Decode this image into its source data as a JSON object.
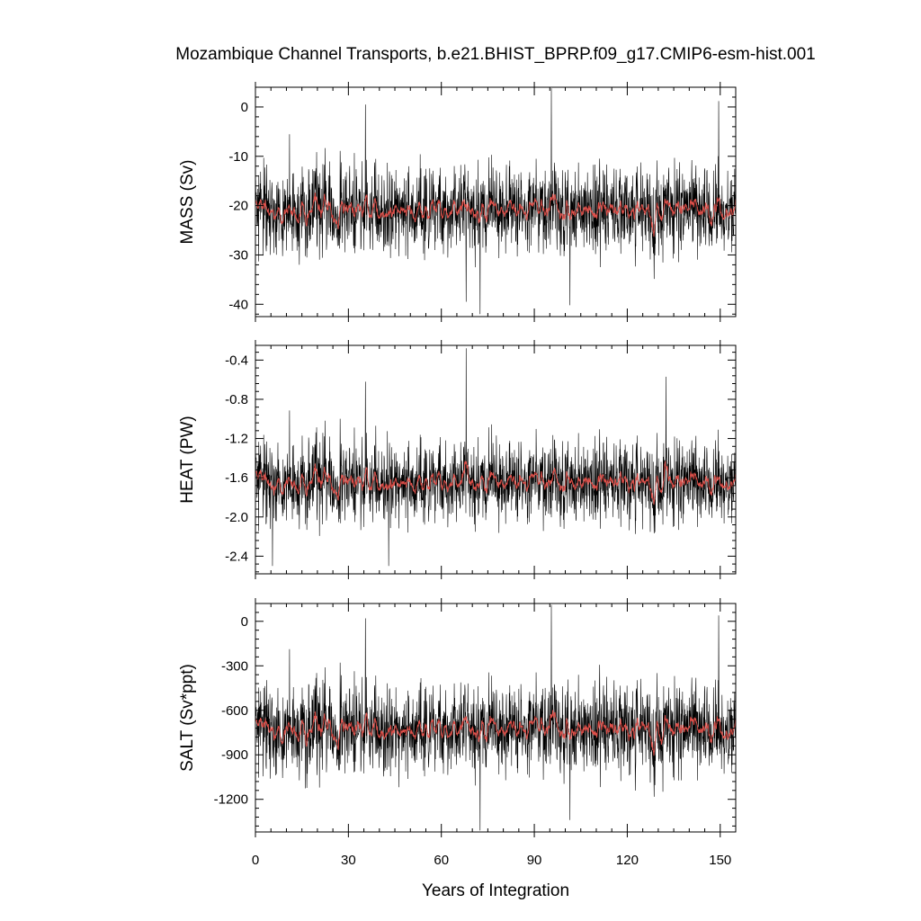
{
  "figure": {
    "title": "Mozambique Channel Transports, b.e21.BHIST_BPRP.f09_g17.CMIP6-esm-hist.001"
  },
  "colors": {
    "raw": "#000000",
    "smooth": "#e0504a",
    "axis": "#000000"
  },
  "chart_data": [
    {
      "type": "line",
      "key": "mass",
      "ylabel": "MASS (Sv)",
      "xlim": [
        0,
        155
      ],
      "ylim": [
        -42.5,
        4
      ],
      "yticks": [
        0,
        -10,
        -20,
        -30,
        -40
      ],
      "yticklabels": [
        "0",
        "-10",
        "-20",
        "-30",
        "-40"
      ],
      "mean": -21,
      "amplitude": 7,
      "smooth_amplitude": 2.2,
      "extremes": [
        {
          "x": 95.5,
          "y": 3.8
        },
        {
          "x": 72.5,
          "y": -42.0
        },
        {
          "x": 101.5,
          "y": -40.2
        },
        {
          "x": 149.5,
          "y": 1.2
        },
        {
          "x": 35.5,
          "y": 0.5
        },
        {
          "x": 68.0,
          "y": -39.5
        }
      ],
      "series": [
        {
          "name": "",
          "style": "raw"
        },
        {
          "name": "",
          "style": "smooth"
        }
      ]
    },
    {
      "type": "line",
      "key": "heat",
      "ylabel": "HEAT (PW)",
      "xlim": [
        0,
        155
      ],
      "ylim": [
        -2.58,
        -0.25
      ],
      "yticks": [
        -0.4,
        -0.8,
        -1.2,
        -1.6,
        -2.0,
        -2.4
      ],
      "yticklabels": [
        "-0.4",
        "-0.8",
        "-1.2",
        "-1.6",
        "-2.0",
        "-2.4"
      ],
      "mean": -1.65,
      "amplitude": 0.33,
      "smooth_amplitude": 0.1,
      "extremes": [
        {
          "x": 68.0,
          "y": -0.28
        },
        {
          "x": 43.0,
          "y": -2.5
        },
        {
          "x": 5.5,
          "y": -2.5
        },
        {
          "x": 132.5,
          "y": -0.57
        },
        {
          "x": 35.5,
          "y": -0.62
        }
      ],
      "series": [
        {
          "name": "",
          "style": "raw"
        },
        {
          "name": "",
          "style": "smooth"
        }
      ]
    },
    {
      "type": "line",
      "key": "salt",
      "ylabel": "SALT (Sv*ppt)",
      "xlim": [
        0,
        155
      ],
      "ylim": [
        -1420,
        120
      ],
      "yticks": [
        0,
        -300,
        -600,
        -900,
        -1200
      ],
      "yticklabels": [
        "0",
        "-300",
        "-600",
        "-900",
        "-1200"
      ],
      "mean": -730,
      "amplitude": 240,
      "smooth_amplitude": 70,
      "extremes": [
        {
          "x": 95.5,
          "y": 110
        },
        {
          "x": 72.5,
          "y": -1410
        },
        {
          "x": 101.5,
          "y": -1340
        },
        {
          "x": 149.5,
          "y": 40
        },
        {
          "x": 35.5,
          "y": 20
        }
      ],
      "series": [
        {
          "name": "",
          "style": "raw"
        },
        {
          "name": "",
          "style": "smooth"
        }
      ]
    }
  ],
  "xaxis": {
    "label": "Years of Integration",
    "ticks": [
      0,
      30,
      60,
      90,
      120,
      150
    ],
    "ticklabels": [
      "0",
      "30",
      "60",
      "90",
      "120",
      "150"
    ]
  }
}
